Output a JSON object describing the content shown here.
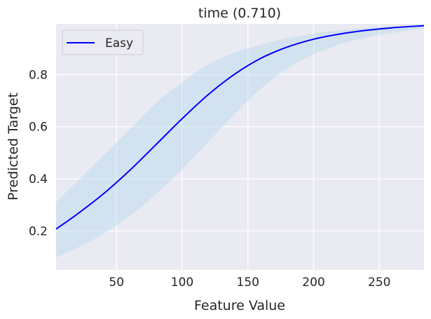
{
  "chart_data": {
    "type": "line",
    "title": "time (0.710)",
    "xlabel": "Feature Value",
    "ylabel": "Predicted Target",
    "xlim": [
      4,
      284
    ],
    "ylim": [
      0.05,
      0.995
    ],
    "x_ticks": [
      50,
      100,
      150,
      200,
      250
    ],
    "y_ticks": [
      0.2,
      0.4,
      0.6,
      0.8
    ],
    "x_tick_labels": [
      "50",
      "100",
      "150",
      "200",
      "250"
    ],
    "y_tick_labels": [
      "0.2",
      "0.4",
      "0.6",
      "0.8"
    ],
    "grid": true,
    "legend_position": "upper-left",
    "series": [
      {
        "name": "Easy",
        "color": "#0000ff",
        "x": [
          4,
          20,
          40,
          60,
          80,
          100,
          120,
          140,
          160,
          180,
          200,
          220,
          240,
          260,
          284
        ],
        "values": [
          0.207,
          0.264,
          0.342,
          0.432,
          0.531,
          0.631,
          0.724,
          0.802,
          0.863,
          0.906,
          0.936,
          0.956,
          0.97,
          0.98,
          0.988
        ],
        "band_lower": [
          0.098,
          0.134,
          0.188,
          0.257,
          0.341,
          0.437,
          0.543,
          0.65,
          0.747,
          0.823,
          0.878,
          0.916,
          0.942,
          0.96,
          0.976
        ],
        "band_upper": [
          0.31,
          0.39,
          0.49,
          0.59,
          0.69,
          0.77,
          0.84,
          0.885,
          0.915,
          0.94,
          0.958,
          0.97,
          0.979,
          0.986,
          0.992
        ]
      }
    ],
    "colors": {
      "plot_background": "#eaeaf2",
      "grid": "#ffffff",
      "band": "#b7d9ee",
      "text": "#262626"
    }
  }
}
